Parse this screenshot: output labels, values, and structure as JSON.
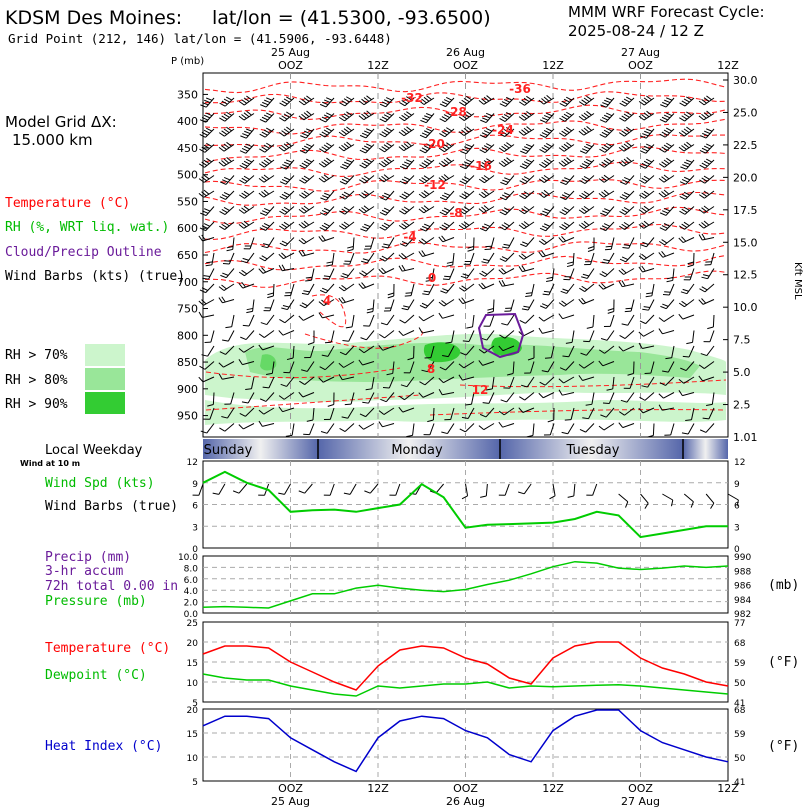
{
  "header": {
    "station": "KDSM Des Moines:",
    "latlon": "lat/lon = (41.5300, -93.6500)",
    "gridpoint": "Grid Point (212, 146) lat/lon = (41.5906, -93.6448)",
    "model": "MMM WRF Forecast Cycle:",
    "cycle": "2025-08-24 / 12  Z"
  },
  "legend": {
    "grid_title": "Model Grid ΔX:",
    "grid_value": "15.000 km",
    "temperature": "Temperature (°C)",
    "rh": "RH (%, WRT liq. wat.)",
    "cloud": "Cloud/Precip Outline",
    "wind": "Wind Barbs (kts) (true)",
    "rh70": "RH > 70%",
    "rh80": "RH > 80%",
    "rh90": "RH > 90%",
    "local_weekday": "Local Weekday",
    "wind_at": "Wind at 10 m",
    "wind_spd": "Wind Spd (kts)",
    "wind_barbs": "Wind Barbs (true)",
    "precip": "Precip (mm)",
    "accum": "3-hr accum",
    "total": "72h total 0.00 in",
    "pressure": "Pressure (mb)",
    "mb_unit": "(mb)",
    "temp2": "Temperature (°C)",
    "dewpoint": "Dewpoint (°C)",
    "f_unit": "(°F)",
    "heat_index": "Heat Index (°C)",
    "f_unit2": "(°F)"
  },
  "colors": {
    "temperature": "#ff0000",
    "green": "#00cc00",
    "cloud": "#6a1b9a",
    "heat_index": "#0000cc",
    "rh70": "#ccf5cc",
    "rh80": "#99e699",
    "rh90": "#33cc33"
  },
  "time_axis": {
    "top_labels": [
      {
        "hour": 12,
        "time": "OOZ",
        "date": "25 Aug"
      },
      {
        "hour": 24,
        "time": "12Z",
        "date": ""
      },
      {
        "hour": 36,
        "time": "OOZ",
        "date": "26 Aug"
      },
      {
        "hour": 48,
        "time": "12Z",
        "date": ""
      },
      {
        "hour": 60,
        "time": "OOZ",
        "date": "27 Aug"
      },
      {
        "hour": 72,
        "time": "12Z",
        "date": ""
      }
    ],
    "weekdays": [
      "Sunday",
      "Monday",
      "Tuesday"
    ]
  },
  "chart_data": [
    {
      "type": "line",
      "name": "skewt-cross-section",
      "y_axis_label": "P (mb)",
      "y_ticks": [
        350,
        400,
        450,
        500,
        550,
        600,
        650,
        700,
        750,
        800,
        850,
        900,
        950
      ],
      "right_axis_label": "Kft MSL",
      "right_ticks": [
        "30.0",
        "25.0",
        "22.5",
        "20.0",
        "17.5",
        "15.0",
        "12.5",
        "10.0",
        "7.5",
        "5.0",
        "2.5",
        "1.01"
      ],
      "temperature_labels": [
        "-36",
        "-32",
        "-28",
        "-24",
        "-20",
        "-16",
        "-12",
        "-8",
        "-4",
        "0",
        "4",
        "8",
        "12"
      ]
    },
    {
      "type": "line",
      "name": "wind-speed",
      "ylim": [
        0,
        12
      ],
      "y_ticks": [
        0,
        3,
        6,
        9,
        12
      ],
      "x": [
        0,
        3,
        6,
        9,
        12,
        15,
        18,
        21,
        24,
        27,
        30,
        33,
        36,
        39,
        42,
        45,
        48,
        51,
        54,
        57,
        60,
        63,
        66,
        69,
        72
      ],
      "values": [
        9,
        10.5,
        9,
        8,
        5,
        5.2,
        5.3,
        5,
        5.5,
        6,
        8.8,
        7,
        2.8,
        3.2,
        3.3,
        3.4,
        3.5,
        4,
        5,
        4.5,
        1.5,
        2,
        2.5,
        3,
        3
      ]
    },
    {
      "type": "line",
      "name": "precip-pressure",
      "ylim_left": [
        0,
        10
      ],
      "y_ticks_left": [
        "0.0",
        "2.0",
        "4.0",
        "6.0",
        "8.0",
        "10.0"
      ],
      "y_ticks_right": [
        "982",
        "984",
        "986",
        "988",
        "990"
      ],
      "pressure_x": [
        0,
        3,
        6,
        9,
        12,
        15,
        18,
        21,
        24,
        27,
        30,
        33,
        36,
        39,
        42,
        45,
        48,
        51,
        54,
        57,
        60,
        63,
        66,
        69,
        72
      ],
      "pressure_mb": [
        982.8,
        982.9,
        982.8,
        982.7,
        983.7,
        984.7,
        984.7,
        985.5,
        985.9,
        985.5,
        985.2,
        985.0,
        985.3,
        986.0,
        986.6,
        987.5,
        988.5,
        989.2,
        989.0,
        988.3,
        988.1,
        988.3,
        988.6,
        988.4,
        988.6
      ]
    },
    {
      "type": "line",
      "name": "temperature-dewpoint",
      "ylim": [
        5,
        25
      ],
      "y_ticks_left": [
        5,
        10,
        15,
        20,
        25
      ],
      "y_ticks_right": [
        41,
        50,
        59,
        68,
        77
      ],
      "x": [
        0,
        3,
        6,
        9,
        12,
        15,
        18,
        21,
        24,
        27,
        30,
        33,
        36,
        39,
        42,
        45,
        48,
        51,
        54,
        57,
        60,
        63,
        66,
        69,
        72
      ],
      "series": [
        {
          "name": "Temperature",
          "values": [
            17,
            19,
            19,
            18.5,
            15,
            12.5,
            10,
            8,
            14,
            18,
            19,
            18.5,
            16,
            14.5,
            11,
            9.5,
            16,
            19,
            20,
            20,
            16,
            13.5,
            12,
            10,
            9
          ]
        },
        {
          "name": "Dewpoint",
          "values": [
            12,
            11,
            10.5,
            10.5,
            9,
            8,
            7,
            6.5,
            9,
            8.5,
            9,
            9.5,
            9.5,
            10,
            8.5,
            9,
            8.8,
            9,
            9.2,
            9.3,
            9,
            8.5,
            8,
            7.5,
            7
          ]
        }
      ]
    },
    {
      "type": "line",
      "name": "heat-index",
      "ylim": [
        5,
        20
      ],
      "y_ticks_left": [
        5,
        10,
        15,
        20
      ],
      "y_ticks_right": [
        41,
        50,
        59,
        68
      ],
      "x": [
        0,
        3,
        6,
        9,
        12,
        15,
        18,
        21,
        24,
        27,
        30,
        33,
        36,
        39,
        42,
        45,
        48,
        51,
        54,
        57,
        60,
        63,
        66,
        69,
        72
      ],
      "values": [
        16.5,
        18.5,
        18.5,
        18,
        14,
        11.5,
        9,
        7,
        14,
        17.5,
        18.5,
        18,
        15.5,
        14,
        10.5,
        9,
        15.5,
        18.5,
        19.8,
        19.8,
        15.5,
        13,
        11.5,
        10,
        9
      ]
    }
  ]
}
